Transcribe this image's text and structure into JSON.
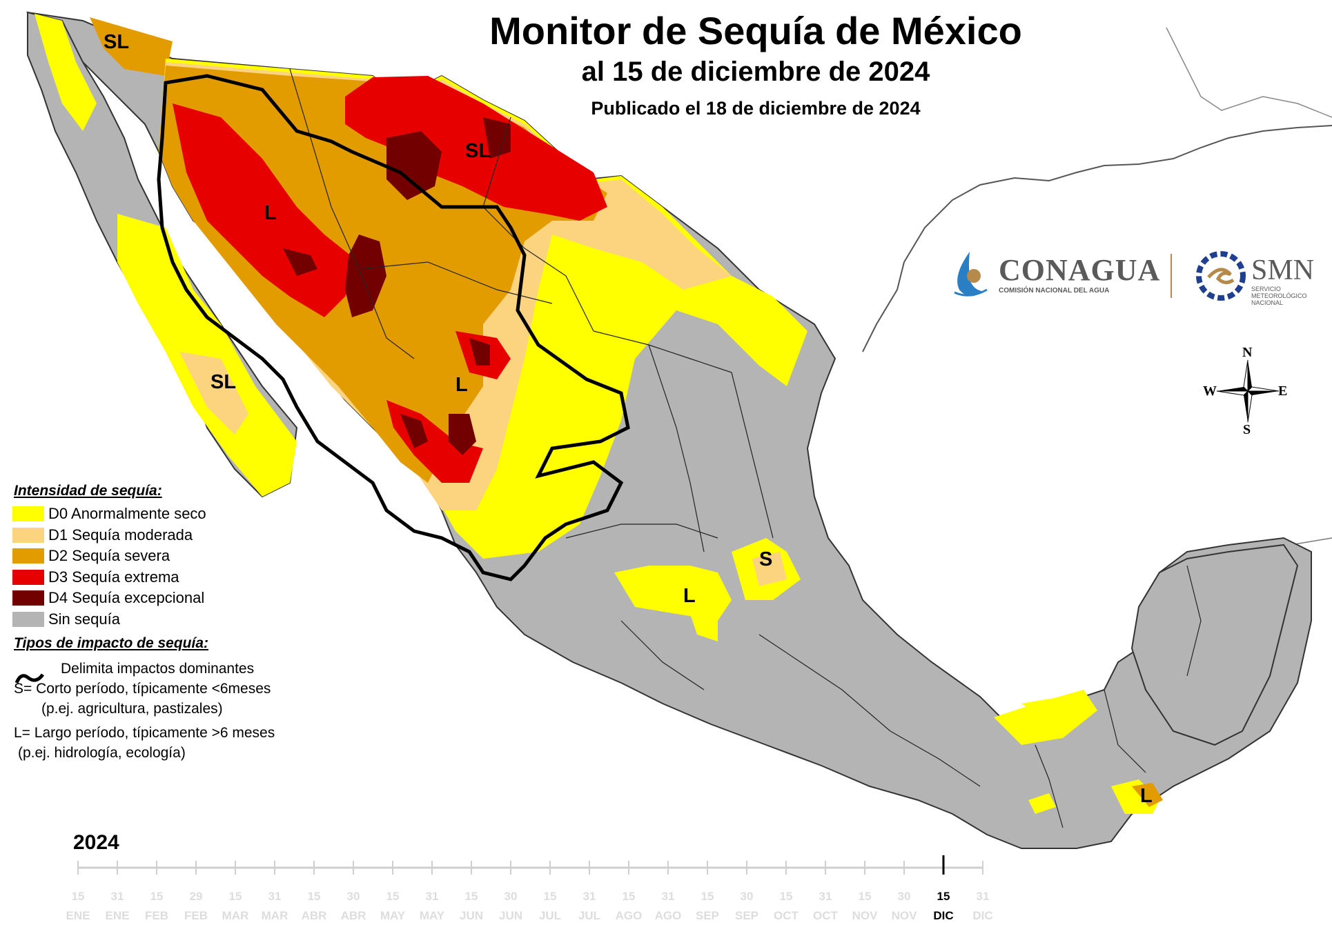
{
  "title": "Monitor de Sequía de México",
  "date_line": "al 15 de diciembre de 2024",
  "published": "Publicado el 18 de diciembre de 2024",
  "legend": {
    "intensity_heading": "Intensidad de sequía:",
    "categories": [
      {
        "label": "D0 Anormalmente seco",
        "color": "#ffff00"
      },
      {
        "label": "D1 Sequía moderada",
        "color": "#fcd37f"
      },
      {
        "label": "D2 Sequía severa",
        "color": "#e39c00"
      },
      {
        "label": "D3 Sequía extrema",
        "color": "#e60000"
      },
      {
        "label": "D4 Sequía excepcional",
        "color": "#730000"
      },
      {
        "label": "Sin sequía",
        "color": "#b4b4b4"
      }
    ],
    "impact_heading": "Tipos de impacto de sequía:",
    "impact_line": "Delimita impactos dominantes",
    "short_term": "S= Corto período, típicamente <6meses",
    "short_term_ex": "(p.ej. agricultura, pastizales)",
    "long_term": "L= Largo período, típicamente >6 meses",
    "long_term_ex": "(p.ej. hidrología, ecología)"
  },
  "map_labels": [
    "SL",
    "SL",
    "SL",
    "L",
    "L",
    "L",
    "S",
    "L"
  ],
  "logos": {
    "conagua": "CONAGUA",
    "conagua_sub": "COMISIÓN NACIONAL DEL AGUA",
    "smn": "SMN",
    "smn_sub1": "SERVICIO",
    "smn_sub2": "METEOROLÓGICO",
    "smn_sub3": "NACIONAL"
  },
  "compass": {
    "n": "N",
    "s": "S",
    "e": "E",
    "w": "W"
  },
  "timeline": {
    "year": "2024",
    "days": [
      "15",
      "31",
      "15",
      "29",
      "15",
      "31",
      "15",
      "30",
      "15",
      "31",
      "15",
      "30",
      "15",
      "31",
      "15",
      "31",
      "15",
      "30",
      "15",
      "31",
      "15",
      "30",
      "15",
      "31"
    ],
    "months": [
      "ENE",
      "ENE",
      "FEB",
      "FEB",
      "MAR",
      "MAR",
      "ABR",
      "ABR",
      "MAY",
      "MAY",
      "JUN",
      "JUN",
      "JUL",
      "JUL",
      "AGO",
      "AGO",
      "SEP",
      "SEP",
      "OCT",
      "OCT",
      "NOV",
      "NOV",
      "DIC",
      "DIC"
    ],
    "current_index": 22
  }
}
